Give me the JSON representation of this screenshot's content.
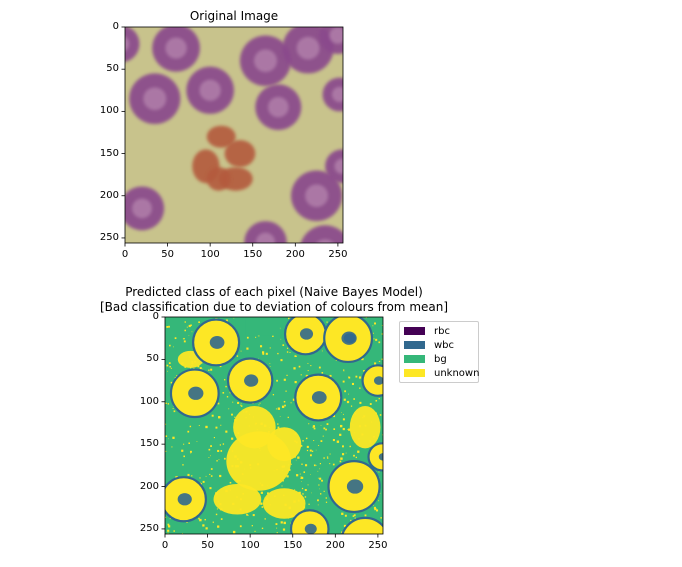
{
  "chart_data": [
    {
      "type": "image",
      "title": "Original Image",
      "xlim": [
        0,
        256
      ],
      "ylim": [
        256,
        0
      ],
      "xticks": [
        0,
        50,
        100,
        150,
        200,
        250
      ],
      "yticks": [
        0,
        50,
        100,
        150,
        200,
        250
      ],
      "content": "blood-smear",
      "colors": {
        "background": "#c8c38c",
        "rbc": "#8a4a8c",
        "rbc_center": "#b888b0",
        "wbc": "#b45a3c"
      }
    },
    {
      "type": "heatmap",
      "title_line1": "Predicted class of each pixel (Naive Bayes Model)",
      "title_line2": "[Bad classification due to deviation of colours from mean]",
      "xlim": [
        0,
        256
      ],
      "ylim": [
        256,
        0
      ],
      "xticks": [
        0,
        50,
        100,
        150,
        200,
        250
      ],
      "yticks": [
        0,
        50,
        100,
        150,
        200,
        250
      ],
      "legend_position": "upper-right-outside",
      "classes": [
        {
          "label": "rbc",
          "color": "#440154"
        },
        {
          "label": "wbc",
          "color": "#31688e"
        },
        {
          "label": "bg",
          "color": "#35b779"
        },
        {
          "label": "unknown",
          "color": "#fde725"
        }
      ]
    }
  ]
}
